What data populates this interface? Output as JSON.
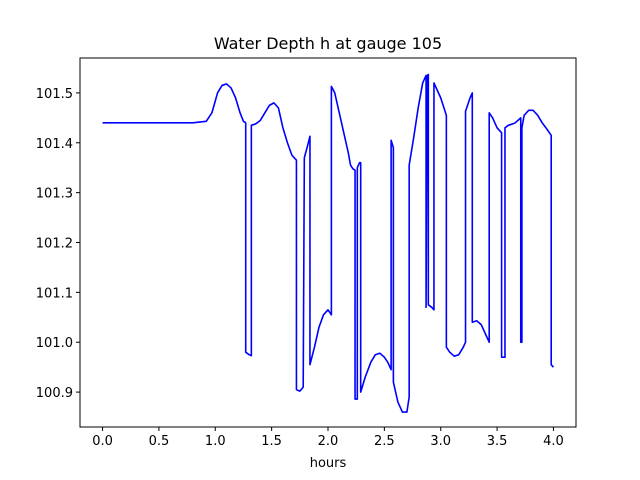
{
  "chart_data": {
    "type": "line",
    "title": "Water Depth h at gauge 105",
    "xlabel": "hours",
    "ylabel": "",
    "xlim": [
      -0.2,
      4.2
    ],
    "ylim": [
      100.83,
      101.57
    ],
    "xticks": [
      0.0,
      0.5,
      1.0,
      1.5,
      2.0,
      2.5,
      3.0,
      3.5,
      4.0
    ],
    "xtick_labels": [
      "0.0",
      "0.5",
      "1.0",
      "1.5",
      "2.0",
      "2.5",
      "3.0",
      "3.5",
      "4.0"
    ],
    "yticks": [
      100.9,
      101.0,
      101.1,
      101.2,
      101.3,
      101.4,
      101.5
    ],
    "ytick_labels": [
      "100.9",
      "101.0",
      "101.1",
      "101.2",
      "101.3",
      "101.4",
      "101.5"
    ],
    "grid": false,
    "series": [
      {
        "color": "#0000ff",
        "x": [
          0.0,
          0.3,
          0.6,
          0.8,
          0.92,
          0.97,
          1.02,
          1.06,
          1.1,
          1.14,
          1.18,
          1.22,
          1.25,
          1.27,
          1.27,
          1.3,
          1.32,
          1.32,
          1.36,
          1.4,
          1.44,
          1.48,
          1.52,
          1.56,
          1.6,
          1.64,
          1.68,
          1.72,
          1.72,
          1.75,
          1.78,
          1.79,
          1.82,
          1.84,
          1.84,
          1.88,
          1.92,
          1.96,
          2.0,
          2.03,
          2.03,
          2.06,
          2.1,
          2.14,
          2.18,
          2.2,
          2.22,
          2.24,
          2.24,
          2.26,
          2.26,
          2.28,
          2.29,
          2.29,
          2.33,
          2.38,
          2.42,
          2.46,
          2.5,
          2.53,
          2.56,
          2.56,
          2.58,
          2.58,
          2.62,
          2.66,
          2.7,
          2.72,
          2.72,
          2.76,
          2.8,
          2.84,
          2.86,
          2.87,
          2.87,
          2.88,
          2.89,
          2.89,
          2.92,
          2.94,
          2.94,
          3.0,
          3.05,
          3.05,
          3.08,
          3.12,
          3.16,
          3.2,
          3.22,
          3.22,
          3.26,
          3.28,
          3.28,
          3.32,
          3.36,
          3.4,
          3.43,
          3.43,
          3.46,
          3.5,
          3.54,
          3.54,
          3.57,
          3.57,
          3.6,
          3.64,
          3.66,
          3.7,
          3.71,
          3.71,
          3.72,
          3.72,
          3.74,
          3.78,
          3.82,
          3.86,
          3.9,
          3.94,
          3.98,
          3.98,
          4.0
        ],
        "y": [
          101.44,
          101.44,
          101.44,
          101.44,
          101.443,
          101.46,
          101.5,
          101.515,
          101.518,
          101.51,
          101.49,
          101.46,
          101.443,
          101.44,
          100.98,
          100.975,
          100.973,
          101.435,
          101.438,
          101.445,
          101.46,
          101.475,
          101.48,
          101.47,
          101.43,
          101.4,
          101.375,
          101.365,
          100.905,
          100.902,
          100.91,
          101.37,
          101.395,
          101.413,
          100.955,
          100.99,
          101.03,
          101.055,
          101.065,
          101.055,
          101.513,
          101.5,
          101.46,
          101.42,
          101.38,
          101.355,
          101.348,
          101.345,
          100.886,
          100.886,
          101.35,
          101.36,
          101.36,
          100.9,
          100.93,
          100.96,
          100.975,
          100.978,
          100.97,
          100.96,
          100.945,
          101.405,
          101.39,
          100.92,
          100.88,
          100.86,
          100.86,
          100.89,
          101.355,
          101.41,
          101.47,
          101.52,
          101.53,
          101.535,
          101.07,
          101.535,
          101.537,
          101.075,
          101.07,
          101.065,
          101.52,
          101.49,
          101.455,
          100.99,
          100.98,
          100.972,
          100.975,
          100.99,
          101.0,
          101.463,
          101.49,
          101.5,
          101.04,
          101.043,
          101.035,
          101.015,
          101.0,
          101.46,
          101.45,
          101.43,
          101.42,
          100.97,
          100.97,
          101.43,
          101.435,
          101.438,
          101.44,
          101.448,
          101.45,
          101.0,
          101.0,
          101.43,
          101.455,
          101.465,
          101.465,
          101.455,
          101.44,
          101.428,
          101.415,
          100.955,
          100.95
        ]
      }
    ]
  }
}
